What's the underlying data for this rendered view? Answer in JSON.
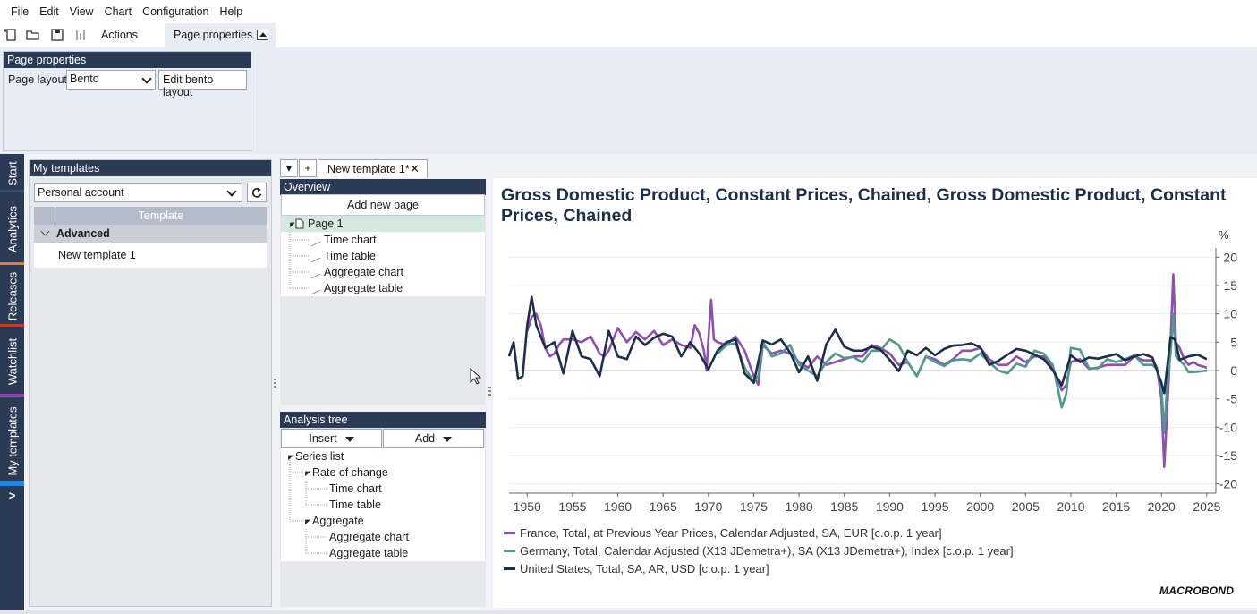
{
  "menu": [
    "File",
    "Edit",
    "View",
    "Chart",
    "Configuration",
    "Help"
  ],
  "toolbar": {
    "actions_label": "Actions",
    "page_properties_tab": "Page properties",
    "icons": [
      "new-document-icon",
      "open-folder-icon",
      "save-icon",
      "chart-series-icon"
    ]
  },
  "ribbon": {
    "group_title": "Page properties",
    "page_layout_label": "Page layout",
    "page_layout_value": "Bento",
    "edit_bento_label": "Edit bento layout"
  },
  "leftnav": {
    "tabs": [
      {
        "label": "Start",
        "accent": "#3a4b6a"
      },
      {
        "label": "Analytics",
        "accent": "#e67e22"
      },
      {
        "label": "Releases",
        "accent": "#c0392b"
      },
      {
        "label": "Watchlist",
        "accent": "#8e44ad"
      },
      {
        "label": "My templates",
        "accent": "#1e88e5"
      }
    ],
    "expand_glyph": ">"
  },
  "my_templates": {
    "title": "My templates",
    "account_value": "Personal account",
    "grid_header": "Template",
    "group": "Advanced",
    "items": [
      "New template 1"
    ]
  },
  "tabs": {
    "menu_glyph": "▾",
    "add_glyph": "+",
    "document_tab": "New template 1*",
    "close_glyph": "✕"
  },
  "overview": {
    "title": "Overview",
    "add_page": "Add new page",
    "page": "Page 1",
    "items": [
      "Time chart",
      "Time table",
      "Aggregate chart",
      "Aggregate table"
    ]
  },
  "analysis_tree": {
    "title": "Analysis tree",
    "insert_label": "Insert",
    "add_label": "Add",
    "nodes": {
      "series_list": "Series list",
      "rate_of_change": "Rate of change",
      "roc_children": [
        "Time chart",
        "Time table"
      ],
      "aggregate": "Aggregate",
      "agg_children": [
        "Aggregate chart",
        "Aggregate table"
      ]
    }
  },
  "chart": {
    "title": "Gross Domestic Product, Constant Prices, Chained, Gross Domestic Product, Constant Prices, Chained",
    "unit_label": "%",
    "brand": "MACROBOND"
  },
  "chart_data": {
    "type": "line",
    "title": "Gross Domestic Product, Constant Prices, Chained, Gross Domestic Product, Constant Prices, Chained",
    "ylabel": "%",
    "xlim": [
      1948,
      2026
    ],
    "ylim": [
      -21,
      21
    ],
    "xticks": [
      1950,
      1955,
      1960,
      1965,
      1970,
      1975,
      1980,
      1985,
      1990,
      1995,
      2000,
      2005,
      2010,
      2015,
      2020,
      2025
    ],
    "yticks": [
      20,
      15,
      10,
      5,
      0,
      -5,
      -10,
      -15,
      -20
    ],
    "grid": "horizontal",
    "legend_position": "bottom-left",
    "series": [
      {
        "name": "France, Total, at Previous Year Prices, Calendar Adjusted, SA, EUR [c.o.p. 1 year]",
        "color": "#8e4fb0",
        "points": [
          [
            1950,
            7
          ],
          [
            1950.5,
            9.5
          ],
          [
            1951,
            10
          ],
          [
            1951.5,
            8
          ],
          [
            1952,
            4
          ],
          [
            1952.5,
            2.5
          ],
          [
            1953,
            3
          ],
          [
            1953.5,
            4.5
          ],
          [
            1954,
            5.5
          ],
          [
            1955,
            5.5
          ],
          [
            1956,
            5
          ],
          [
            1957,
            6
          ],
          [
            1958,
            3
          ],
          [
            1958.5,
            2.5
          ],
          [
            1959,
            3.5
          ],
          [
            1960,
            7.5
          ],
          [
            1961,
            5
          ],
          [
            1962,
            6.8
          ],
          [
            1963,
            5.5
          ],
          [
            1964,
            7
          ],
          [
            1965,
            4.5
          ],
          [
            1966,
            5.5
          ],
          [
            1967,
            4.5
          ],
          [
            1968,
            4
          ],
          [
            1968.5,
            8
          ],
          [
            1969,
            6.5
          ],
          [
            1969.5,
            3.5
          ],
          [
            1969.8,
            0
          ],
          [
            1970,
            5.5
          ],
          [
            1970.3,
            12.5
          ],
          [
            1970.6,
            5.5
          ],
          [
            1971,
            5
          ],
          [
            1972,
            4.5
          ],
          [
            1973,
            6
          ],
          [
            1974,
            3.5
          ],
          [
            1975,
            -1
          ],
          [
            1975.5,
            -2.5
          ],
          [
            1976,
            4.5
          ],
          [
            1977,
            3
          ],
          [
            1978,
            3.5
          ],
          [
            1979,
            3
          ],
          [
            1980,
            1.5
          ],
          [
            1981,
            0.5
          ],
          [
            1982,
            2.5
          ],
          [
            1983,
            1
          ],
          [
            1984,
            1.5
          ],
          [
            1985,
            2
          ],
          [
            1986,
            2.5
          ],
          [
            1987,
            2.5
          ],
          [
            1988,
            4.5
          ],
          [
            1989,
            4
          ],
          [
            1990,
            3
          ],
          [
            1991,
            1
          ],
          [
            1992,
            1.5
          ],
          [
            1993,
            -1
          ],
          [
            1994,
            2.5
          ],
          [
            1995,
            2
          ],
          [
            1996,
            1
          ],
          [
            1997,
            2
          ],
          [
            1998,
            3.5
          ],
          [
            1999,
            3.5
          ],
          [
            2000,
            4
          ],
          [
            2001,
            2
          ],
          [
            2002,
            1
          ],
          [
            2003,
            1
          ],
          [
            2004,
            2.5
          ],
          [
            2005,
            1.5
          ],
          [
            2006,
            2.5
          ],
          [
            2007,
            2.5
          ],
          [
            2008,
            0.5
          ],
          [
            2009,
            -3.5
          ],
          [
            2009.5,
            -2.5
          ],
          [
            2010,
            1.5
          ],
          [
            2011,
            2
          ],
          [
            2012,
            0.3
          ],
          [
            2013,
            0.5
          ],
          [
            2014,
            1
          ],
          [
            2015,
            1
          ],
          [
            2016,
            1
          ],
          [
            2017,
            2.5
          ],
          [
            2018,
            1.8
          ],
          [
            2019,
            1.8
          ],
          [
            2019.5,
            0.5
          ],
          [
            2020,
            -5
          ],
          [
            2020.3,
            -17
          ],
          [
            2020.6,
            -8
          ],
          [
            2021,
            5
          ],
          [
            2021.3,
            17
          ],
          [
            2021.6,
            5
          ],
          [
            2022,
            4
          ],
          [
            2022.5,
            2
          ],
          [
            2023,
            1
          ],
          [
            2023.5,
            1.5
          ],
          [
            2024,
            1
          ],
          [
            2025,
            0.5
          ]
        ]
      },
      {
        "name": "Germany, Total, Calendar Adjusted (X13 JDemetra+), SA (X13 JDemetra+), Index [c.o.p. 1 year]",
        "color": "#4f9a8a",
        "points": [
          [
            1971,
            3
          ],
          [
            1972,
            4.5
          ],
          [
            1973,
            4.8
          ],
          [
            1974,
            0.5
          ],
          [
            1975,
            -2
          ],
          [
            1975.5,
            -1
          ],
          [
            1976,
            5
          ],
          [
            1977,
            2.5
          ],
          [
            1978,
            3
          ],
          [
            1979,
            4.5
          ],
          [
            1980,
            1
          ],
          [
            1981,
            0
          ],
          [
            1982,
            -1
          ],
          [
            1983,
            1.5
          ],
          [
            1984,
            3
          ],
          [
            1985,
            2.2
          ],
          [
            1986,
            2.4
          ],
          [
            1987,
            1.4
          ],
          [
            1988,
            3.5
          ],
          [
            1989,
            3.5
          ],
          [
            1990,
            5.5
          ],
          [
            1991,
            4.5
          ],
          [
            1992,
            1.5
          ],
          [
            1993,
            -1
          ],
          [
            1994,
            2.5
          ],
          [
            1995,
            1.5
          ],
          [
            1996,
            0.8
          ],
          [
            1997,
            1.8
          ],
          [
            1998,
            2
          ],
          [
            1999,
            1.8
          ],
          [
            2000,
            3
          ],
          [
            2001,
            1.5
          ],
          [
            2002,
            0
          ],
          [
            2003,
            -0.5
          ],
          [
            2004,
            1.2
          ],
          [
            2005,
            0.7
          ],
          [
            2006,
            3.5
          ],
          [
            2007,
            3
          ],
          [
            2008,
            1
          ],
          [
            2009,
            -6.5
          ],
          [
            2009.5,
            -4
          ],
          [
            2010,
            4
          ],
          [
            2011,
            3.7
          ],
          [
            2012,
            0.4
          ],
          [
            2013,
            0.4
          ],
          [
            2014,
            2
          ],
          [
            2015,
            1.5
          ],
          [
            2016,
            2
          ],
          [
            2017,
            2.7
          ],
          [
            2018,
            1
          ],
          [
            2019,
            1
          ],
          [
            2019.5,
            0.3
          ],
          [
            2020,
            -3
          ],
          [
            2020.3,
            -11
          ],
          [
            2020.6,
            -3
          ],
          [
            2021,
            3
          ],
          [
            2021.3,
            10
          ],
          [
            2021.6,
            2.5
          ],
          [
            2022,
            1.8
          ],
          [
            2022.5,
            1
          ],
          [
            2023,
            -0.3
          ],
          [
            2024,
            -0.2
          ],
          [
            2025,
            0
          ]
        ]
      },
      {
        "name": "United States, Total, SA, AR, USD [c.o.p. 1 year]",
        "color": "#1c2e4a",
        "points": [
          [
            1948,
            2.5
          ],
          [
            1948.5,
            5
          ],
          [
            1949,
            -1.5
          ],
          [
            1949.5,
            -1
          ],
          [
            1950,
            8
          ],
          [
            1950.5,
            13
          ],
          [
            1951,
            8
          ],
          [
            1952,
            4
          ],
          [
            1953,
            5
          ],
          [
            1954,
            -0.5
          ],
          [
            1955,
            7
          ],
          [
            1956,
            2.5
          ],
          [
            1957,
            2
          ],
          [
            1958,
            -1
          ],
          [
            1959,
            7
          ],
          [
            1960,
            2.5
          ],
          [
            1961,
            2
          ],
          [
            1962,
            6
          ],
          [
            1963,
            4.5
          ],
          [
            1964,
            5.8
          ],
          [
            1965,
            6.5
          ],
          [
            1966,
            6
          ],
          [
            1967,
            2.5
          ],
          [
            1968,
            5
          ],
          [
            1969,
            3
          ],
          [
            1970,
            0.2
          ],
          [
            1971,
            3.5
          ],
          [
            1972,
            5
          ],
          [
            1973,
            5.5
          ],
          [
            1974,
            -0.5
          ],
          [
            1975,
            -2.2
          ],
          [
            1976,
            5.3
          ],
          [
            1977,
            4.6
          ],
          [
            1978,
            5.5
          ],
          [
            1979,
            3.2
          ],
          [
            1980,
            -0.3
          ],
          [
            1981,
            2.5
          ],
          [
            1982,
            -1.8
          ],
          [
            1983,
            4.6
          ],
          [
            1984,
            7.2
          ],
          [
            1985,
            4.2
          ],
          [
            1986,
            3.5
          ],
          [
            1987,
            3.5
          ],
          [
            1988,
            4.2
          ],
          [
            1989,
            3.7
          ],
          [
            1990,
            1.9
          ],
          [
            1991,
            -0.1
          ],
          [
            1992,
            3.5
          ],
          [
            1993,
            2.7
          ],
          [
            1994,
            4
          ],
          [
            1995,
            2.7
          ],
          [
            1996,
            3.8
          ],
          [
            1997,
            4.4
          ],
          [
            1998,
            4.5
          ],
          [
            1999,
            4.8
          ],
          [
            2000,
            4.1
          ],
          [
            2001,
            1
          ],
          [
            2002,
            1.7
          ],
          [
            2003,
            2.8
          ],
          [
            2004,
            3.8
          ],
          [
            2005,
            3.5
          ],
          [
            2006,
            2.8
          ],
          [
            2007,
            2
          ],
          [
            2008,
            0.1
          ],
          [
            2009,
            -2.6
          ],
          [
            2010,
            2.7
          ],
          [
            2011,
            1.5
          ],
          [
            2012,
            2.3
          ],
          [
            2013,
            2.1
          ],
          [
            2014,
            2.5
          ],
          [
            2015,
            2.9
          ],
          [
            2016,
            1.8
          ],
          [
            2017,
            2.5
          ],
          [
            2018,
            2.9
          ],
          [
            2019,
            2.3
          ],
          [
            2020,
            -2.2
          ],
          [
            2020.3,
            -4
          ],
          [
            2021,
            5.9
          ],
          [
            2021.5,
            5.5
          ],
          [
            2022,
            1.9
          ],
          [
            2023,
            2.5
          ],
          [
            2024,
            2.8
          ],
          [
            2025,
            2
          ]
        ]
      }
    ]
  }
}
